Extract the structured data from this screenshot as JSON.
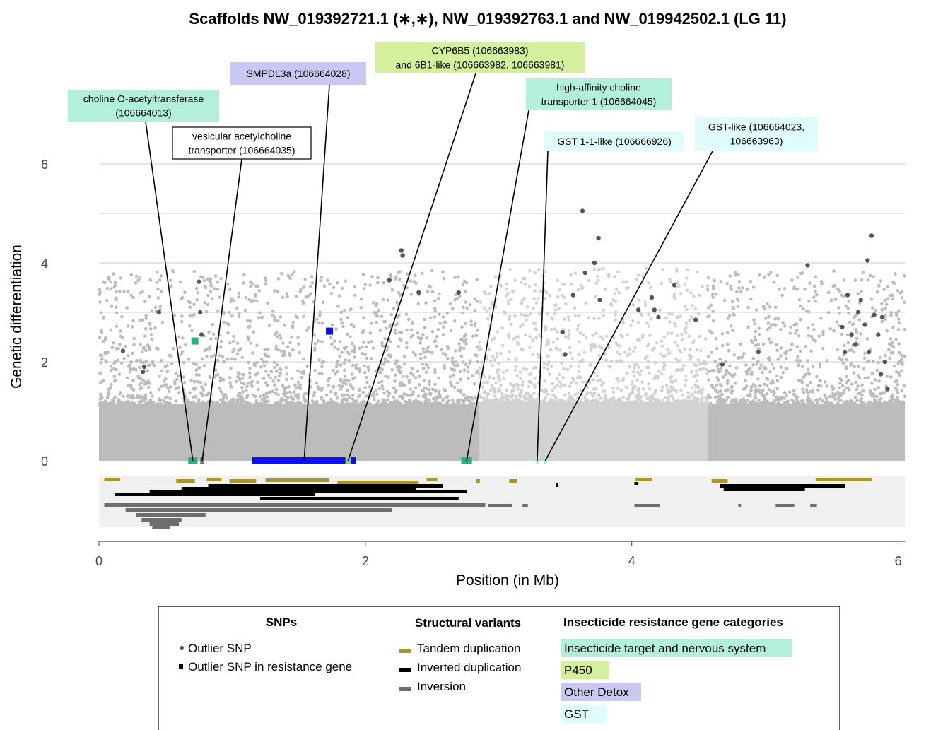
{
  "chart_data": {
    "type": "scatter",
    "title": "Scaffolds NW_019392721.1 (∗,∗), NW_019392763.1 and NW_019942502.1 (LG 11)",
    "xlabel": "Position (in Mb)",
    "ylabel": "Genetic differentiation",
    "xlim": [
      0,
      6.05
    ],
    "ylim": [
      0,
      6.8
    ],
    "xticks": [
      "0",
      "2",
      "4",
      "6"
    ],
    "yticks": [
      "0",
      "2",
      "4",
      "6"
    ],
    "grid": true,
    "scaffolds": [
      {
        "name": "NW_019392721.1",
        "start": 0.0,
        "end": 2.85,
        "color": "#bcbcbc"
      },
      {
        "name": "NW_019392763.1",
        "start": 2.85,
        "end": 4.57,
        "color": "#d2d2d2"
      },
      {
        "name": "NW_019942502.1",
        "start": 4.57,
        "end": 6.05,
        "color": "#bcbcbc"
      }
    ],
    "outlier_snps": [
      [
        0.18,
        2.22
      ],
      [
        0.33,
        1.8
      ],
      [
        0.34,
        1.9
      ],
      [
        0.45,
        3.0
      ],
      [
        0.75,
        3.62
      ],
      [
        0.76,
        3.0
      ],
      [
        0.77,
        2.55
      ],
      [
        2.18,
        3.65
      ],
      [
        2.27,
        4.25
      ],
      [
        2.28,
        4.15
      ],
      [
        2.4,
        3.4
      ],
      [
        2.7,
        3.4
      ],
      [
        3.48,
        2.6
      ],
      [
        3.5,
        2.15
      ],
      [
        3.56,
        3.35
      ],
      [
        3.63,
        5.05
      ],
      [
        3.65,
        3.8
      ],
      [
        3.72,
        4.0
      ],
      [
        3.75,
        4.5
      ],
      [
        3.76,
        3.25
      ],
      [
        4.05,
        3.05
      ],
      [
        4.15,
        3.3
      ],
      [
        4.17,
        3.05
      ],
      [
        4.2,
        2.9
      ],
      [
        4.32,
        3.55
      ],
      [
        4.48,
        2.85
      ],
      [
        4.68,
        1.95
      ],
      [
        4.95,
        2.2
      ],
      [
        5.32,
        3.95
      ],
      [
        5.58,
        2.7
      ],
      [
        5.6,
        2.2
      ],
      [
        5.62,
        3.35
      ],
      [
        5.65,
        2.55
      ],
      [
        5.68,
        2.35
      ],
      [
        5.7,
        3.0
      ],
      [
        5.72,
        3.25
      ],
      [
        5.75,
        2.75
      ],
      [
        5.77,
        4.05
      ],
      [
        5.78,
        2.2
      ],
      [
        5.8,
        4.55
      ],
      [
        5.82,
        2.95
      ],
      [
        5.85,
        2.55
      ],
      [
        5.87,
        1.75
      ],
      [
        5.88,
        2.9
      ],
      [
        5.9,
        2.0
      ],
      [
        5.92,
        1.45
      ]
    ],
    "resistance_outliers": [
      {
        "x": 0.72,
        "y": 2.42,
        "category": "Insecticide target and nervous system"
      },
      {
        "x": 1.73,
        "y": 2.62,
        "category": "Other Detox"
      }
    ],
    "genes": [
      {
        "label": "choline O-acetyltransferase\n(106664013)",
        "start": 0.67,
        "end": 0.74,
        "category": "Insecticide target and nervous system"
      },
      {
        "label": "vesicular acetylcholine\ntransporter (106664035)",
        "start": 0.76,
        "end": 0.79,
        "category": "none"
      },
      {
        "label": "SMPDL3a (106664028)",
        "start": 1.15,
        "end": 1.93,
        "category": "Other Detox"
      },
      {
        "label": "CYP6B5 (106663983)\nand 6B1-like (106663982, 106663981)",
        "start": 1.85,
        "end": 1.89,
        "category": "P450"
      },
      {
        "label": "high-affinity choline\ntransporter 1 (106664045)",
        "start": 2.72,
        "end": 2.8,
        "category": "Insecticide target and nervous system"
      },
      {
        "label": "GST 1-1-like (106666926)",
        "start": 3.28,
        "end": 3.3,
        "category": "GST"
      },
      {
        "label": "GST-like (106664023,\n106663963)",
        "start": 3.34,
        "end": 3.36,
        "category": "GST"
      }
    ],
    "structural_variants": {
      "tandem_duplication": [
        [
          0.04,
          0.16
        ],
        [
          0.58,
          0.72
        ],
        [
          0.81,
          0.92
        ],
        [
          0.98,
          1.18
        ],
        [
          1.25,
          1.73
        ],
        [
          1.79,
          2.4
        ],
        [
          2.46,
          2.54
        ],
        [
          2.83,
          2.86
        ],
        [
          3.08,
          3.14
        ],
        [
          4.03,
          4.15
        ],
        [
          4.6,
          4.72
        ],
        [
          5.38,
          5.8
        ]
      ],
      "inverted_duplication": [
        [
          0.12,
          1.62
        ],
        [
          0.38,
          2.14
        ],
        [
          0.62,
          2.38
        ],
        [
          0.82,
          2.58
        ],
        [
          1.02,
          2.76
        ],
        [
          1.21,
          2.7
        ],
        [
          1.42,
          1.86
        ],
        [
          3.43,
          3.45
        ],
        [
          4.02,
          4.05
        ],
        [
          4.66,
          4.71
        ],
        [
          4.67,
          5.6
        ],
        [
          4.69,
          5.3
        ]
      ],
      "inversion": [
        [
          0.04,
          2.9
        ],
        [
          0.2,
          2.2
        ],
        [
          0.28,
          0.8
        ],
        [
          0.32,
          0.62
        ],
        [
          0.38,
          0.6
        ],
        [
          0.4,
          0.53
        ],
        [
          2.92,
          3.1
        ],
        [
          3.18,
          3.22
        ],
        [
          4.02,
          4.21
        ],
        [
          4.8,
          4.82
        ],
        [
          5.08,
          5.22
        ],
        [
          5.34,
          5.39
        ]
      ]
    }
  },
  "annotations": [
    {
      "lines": [
        "choline O-acetyltransferase",
        "(106664013)"
      ],
      "color": "#b2f0dc"
    },
    {
      "lines": [
        "vesicular acetylcholine",
        "transporter (106664035)"
      ],
      "color": "#ffffff"
    },
    {
      "lines": [
        "SMPDL3a (106664028)"
      ],
      "color": "#c8c8f2"
    },
    {
      "lines": [
        "CYP6B5 (106663983)",
        "and 6B1-like (106663982, 106663981)"
      ],
      "color": "#d4ef9e"
    },
    {
      "lines": [
        "high-affinity choline",
        "transporter 1 (106664045)"
      ],
      "color": "#b2f0dc"
    },
    {
      "lines": [
        "GST 1-1-like (106666926)"
      ],
      "color": "#e0fbfb"
    },
    {
      "lines": [
        "GST-like (106664023,",
        "106663963)"
      ],
      "color": "#e0fbfb"
    }
  ],
  "legend": {
    "snps": {
      "title": "SNPs",
      "items": [
        "Outlier SNP",
        "Outlier SNP in resistance gene"
      ]
    },
    "sv": {
      "title": "Structural variants",
      "items": [
        "Tandem duplication",
        "Inverted duplication",
        "Inversion"
      ]
    },
    "categories": {
      "title": "Insecticide resistance gene categories",
      "items": [
        "Insecticide target and nervous system",
        "P450",
        "Other Detox",
        "GST"
      ]
    }
  },
  "colors": {
    "nervous": "#b2f0dc",
    "nervous_mark": "#2bb083",
    "p450": "#d4ef9e",
    "p450_mark": "#9fcf4e",
    "detox": "#c8c8f2",
    "detox_mark": "#0a10ff",
    "gst": "#e0fbfb",
    "gst_mark": "#a8f0f0",
    "tandem": "#a8962c",
    "inverted": "#000000",
    "inversion": "#6e6e6e",
    "outlier": "#555555",
    "grid": "#e6e6e6",
    "sv_bg": "#f0f0f0"
  }
}
